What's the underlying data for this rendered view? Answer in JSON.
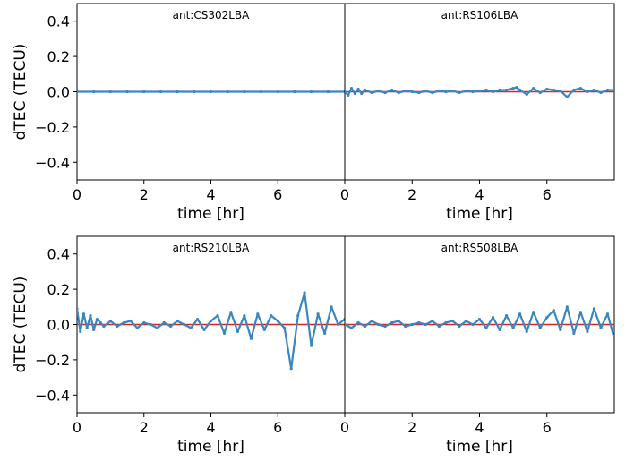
{
  "chart_data": [
    {
      "type": "scatter",
      "title": "ant:CS302LBA",
      "xlabel": "time [hr]",
      "ylabel": "dTEC (TECU)",
      "xlim": [
        0,
        8
      ],
      "ylim": [
        -0.5,
        0.5
      ],
      "xticks": [
        0,
        2,
        4,
        6
      ],
      "yticks": [
        0.4,
        0.2,
        0.0,
        -0.2,
        -0.4
      ],
      "ytick_labels": [
        "0.4",
        "0.2",
        "0.0",
        "−0.2",
        "−0.4"
      ],
      "colors": {
        "series": "#3a86bf",
        "reference": "#d62728"
      },
      "series": [
        {
          "x": [
            0,
            0.5,
            1,
            1.5,
            2,
            2.5,
            3,
            3.5,
            4,
            4.5,
            5,
            5.5,
            6,
            6.5,
            7,
            7.5,
            8
          ],
          "y": [
            0,
            0,
            0,
            0,
            0,
            0,
            0,
            0,
            0,
            0,
            0,
            0,
            0,
            0,
            0,
            0,
            0
          ]
        }
      ]
    },
    {
      "type": "scatter",
      "title": "ant:RS106LBA",
      "xlabel": "time [hr]",
      "ylabel": "",
      "xlim": [
        0,
        8
      ],
      "ylim": [
        -0.5,
        0.5
      ],
      "xticks": [
        0,
        2,
        4,
        6
      ],
      "yticks": [],
      "ytick_labels": [],
      "colors": {
        "series": "#3a86bf",
        "reference": "#d62728"
      },
      "series": [
        {
          "x": [
            0,
            0.1,
            0.2,
            0.3,
            0.4,
            0.5,
            0.6,
            0.8,
            1.0,
            1.2,
            1.4,
            1.6,
            1.8,
            2.0,
            2.2,
            2.4,
            2.6,
            2.8,
            3.0,
            3.2,
            3.4,
            3.6,
            3.8,
            4.0,
            4.2,
            4.4,
            4.6,
            4.8,
            5.0,
            5.1,
            5.2,
            5.4,
            5.6,
            5.8,
            6.0,
            6.2,
            6.4,
            6.6,
            6.8,
            7.0,
            7.2,
            7.4,
            7.6,
            7.8,
            8.0
          ],
          "y": [
            0,
            -0.02,
            0.02,
            -0.01,
            0.015,
            -0.01,
            0.01,
            -0.005,
            0.005,
            -0.005,
            0.01,
            -0.005,
            0.005,
            0,
            -0.005,
            0.005,
            -0.005,
            0.005,
            0,
            0.005,
            -0.005,
            0.005,
            0,
            0.005,
            0.01,
            0,
            0.01,
            0.01,
            0.02,
            0.025,
            0.01,
            -0.015,
            0.02,
            -0.005,
            0.015,
            0.01,
            0.005,
            -0.03,
            0.01,
            0.02,
            0,
            0.01,
            -0.005,
            0.01,
            0.01
          ]
        }
      ]
    },
    {
      "type": "scatter",
      "title": "ant:RS210LBA",
      "xlabel": "time [hr]",
      "ylabel": "dTEC (TECU)",
      "xlim": [
        0,
        8
      ],
      "ylim": [
        -0.5,
        0.5
      ],
      "xticks": [
        0,
        2,
        4,
        6
      ],
      "yticks": [
        0.4,
        0.2,
        0.0,
        -0.2,
        -0.4
      ],
      "ytick_labels": [
        "0.4",
        "0.2",
        "0.0",
        "−0.2",
        "−0.4"
      ],
      "colors": {
        "series": "#3a86bf",
        "reference": "#d62728"
      },
      "series": [
        {
          "x": [
            0,
            0.1,
            0.2,
            0.3,
            0.4,
            0.5,
            0.6,
            0.7,
            0.8,
            1.0,
            1.2,
            1.4,
            1.6,
            1.8,
            2.0,
            2.2,
            2.4,
            2.6,
            2.8,
            3.0,
            3.2,
            3.4,
            3.6,
            3.8,
            4.0,
            4.2,
            4.4,
            4.6,
            4.8,
            5.0,
            5.2,
            5.4,
            5.6,
            5.8,
            6.0,
            6.2,
            6.4,
            6.6,
            6.8,
            7.0,
            7.2,
            7.4,
            7.6,
            7.8,
            8.0
          ],
          "y": [
            0.09,
            -0.04,
            0.06,
            -0.02,
            0.05,
            -0.03,
            0.03,
            0.01,
            -0.01,
            0.02,
            -0.01,
            0.01,
            0.02,
            -0.02,
            0.01,
            0.0,
            -0.02,
            0.01,
            -0.01,
            0.02,
            0.0,
            -0.02,
            0.03,
            -0.03,
            0.02,
            0.05,
            -0.05,
            0.07,
            -0.04,
            0.05,
            -0.08,
            0.06,
            -0.03,
            0.05,
            0.02,
            -0.02,
            -0.25,
            0.05,
            0.18,
            -0.12,
            0.06,
            -0.05,
            0.1,
            0.0,
            0.03
          ]
        }
      ]
    },
    {
      "type": "scatter",
      "title": "ant:RS508LBA",
      "xlabel": "time [hr]",
      "ylabel": "",
      "xlim": [
        0,
        8
      ],
      "ylim": [
        -0.5,
        0.5
      ],
      "xticks": [
        0,
        2,
        4,
        6
      ],
      "yticks": [],
      "ytick_labels": [],
      "colors": {
        "series": "#3a86bf",
        "reference": "#d62728"
      },
      "series": [
        {
          "x": [
            0,
            0.2,
            0.4,
            0.6,
            0.8,
            1.0,
            1.2,
            1.4,
            1.6,
            1.8,
            2.0,
            2.2,
            2.4,
            2.6,
            2.8,
            3.0,
            3.2,
            3.4,
            3.6,
            3.8,
            4.0,
            4.2,
            4.4,
            4.6,
            4.8,
            5.0,
            5.2,
            5.4,
            5.6,
            5.8,
            6.0,
            6.2,
            6.4,
            6.6,
            6.8,
            7.0,
            7.2,
            7.4,
            7.6,
            7.8,
            8.0
          ],
          "y": [
            0.0,
            -0.02,
            0.01,
            -0.01,
            0.02,
            0.0,
            -0.01,
            0.01,
            0.02,
            -0.01,
            0.0,
            0.01,
            0.0,
            0.02,
            -0.01,
            0.01,
            0.02,
            -0.01,
            0.02,
            0.0,
            0.03,
            -0.02,
            0.04,
            -0.03,
            0.05,
            -0.02,
            0.06,
            -0.04,
            0.07,
            -0.02,
            0.04,
            0.08,
            -0.03,
            0.1,
            -0.05,
            0.07,
            -0.04,
            0.09,
            -0.02,
            0.06,
            -0.08
          ]
        }
      ]
    }
  ]
}
